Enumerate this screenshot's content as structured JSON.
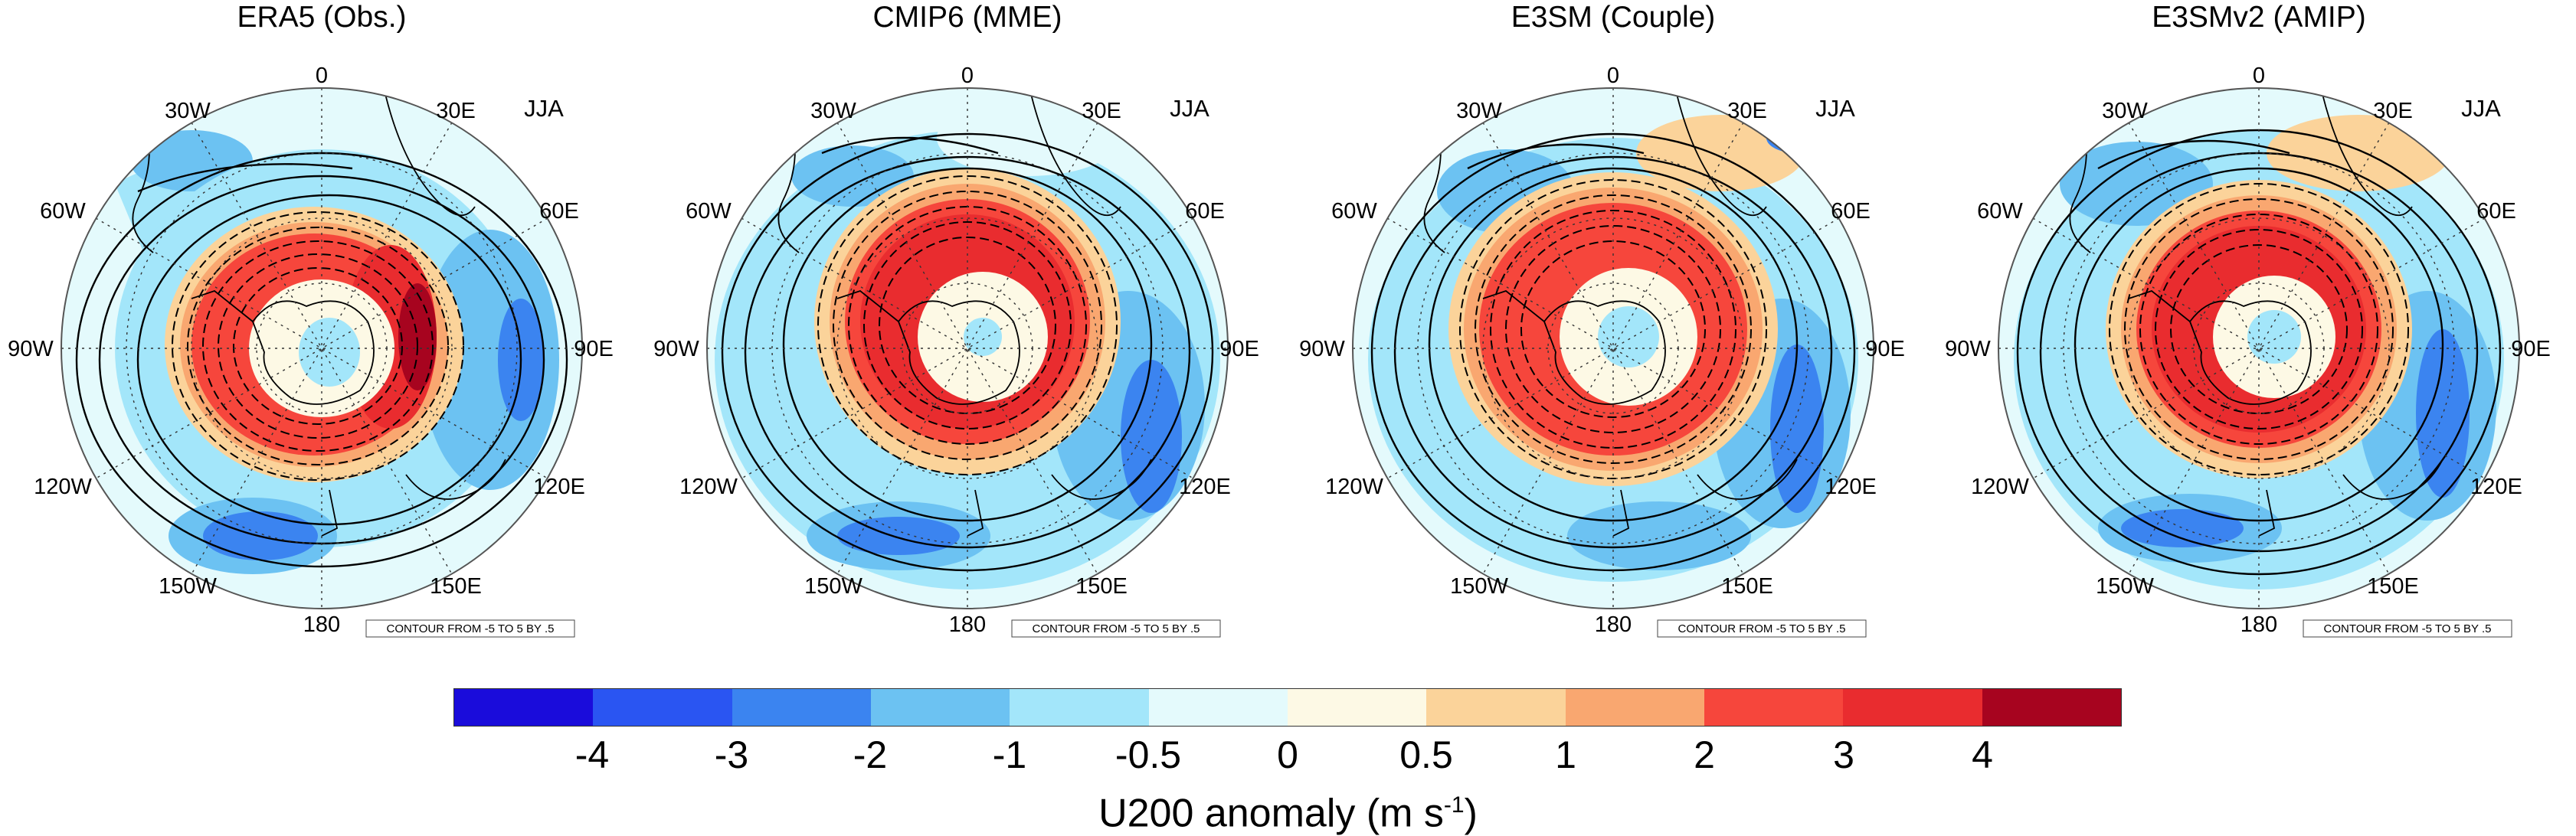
{
  "season": "JJA",
  "contour_info": "CONTOUR FROM -5 TO 5 BY .5",
  "longitude_labels": [
    "0",
    "30E",
    "60E",
    "90E",
    "120E",
    "150E",
    "180",
    "150W",
    "120W",
    "90W",
    "60W",
    "30W"
  ],
  "panels": [
    {
      "title": "ERA5 (Obs.)"
    },
    {
      "title": "CMIP6 (MME)"
    },
    {
      "title": "E3SM (Couple)"
    },
    {
      "title": "E3SMv2 (AMIP)"
    }
  ],
  "colorbar": {
    "colors": [
      "#1a0cdb",
      "#2a55f2",
      "#3b84f0",
      "#6cc2f2",
      "#a3e6fa",
      "#e4fafc",
      "#fdf9e5",
      "#fbd39a",
      "#f9a770",
      "#f6463c",
      "#e92c2f",
      "#a7041f"
    ],
    "ticks": [
      "-4",
      "-3",
      "-2",
      "-1",
      "-0.5",
      "0",
      "0.5",
      "1",
      "2",
      "3",
      "4"
    ],
    "label_main": "U200 anomaly (m s",
    "label_exponent": "-1",
    "label_end": ")"
  }
}
